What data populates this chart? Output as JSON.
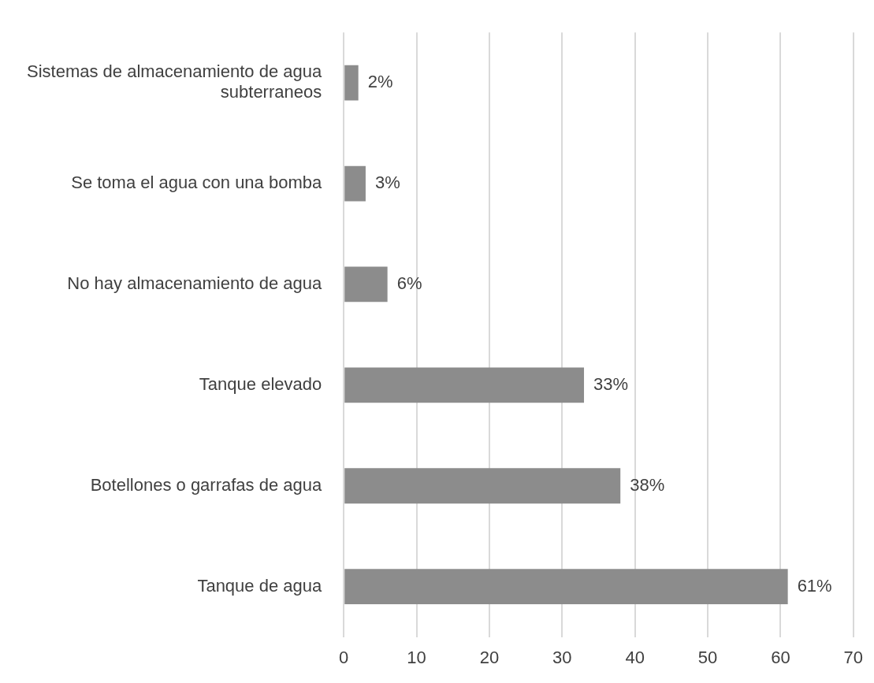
{
  "chart_data": {
    "type": "bar",
    "orientation": "horizontal",
    "categories": [
      "Sistemas de almacenamiento de agua subterraneos",
      "Se toma el agua con una bomba",
      "No hay almacenamiento de agua",
      "Tanque elevado",
      "Botellones o garrafas de agua",
      "Tanque de agua"
    ],
    "values": [
      2,
      3,
      6,
      33,
      38,
      61
    ],
    "value_labels": [
      "2%",
      "3%",
      "6%",
      "33%",
      "38%",
      "61%"
    ],
    "color": "#8c8c8c",
    "xlim": [
      0,
      70
    ],
    "xticks": [
      0,
      10,
      20,
      30,
      40,
      50,
      60,
      70
    ],
    "grid": "x",
    "legend": false
  }
}
